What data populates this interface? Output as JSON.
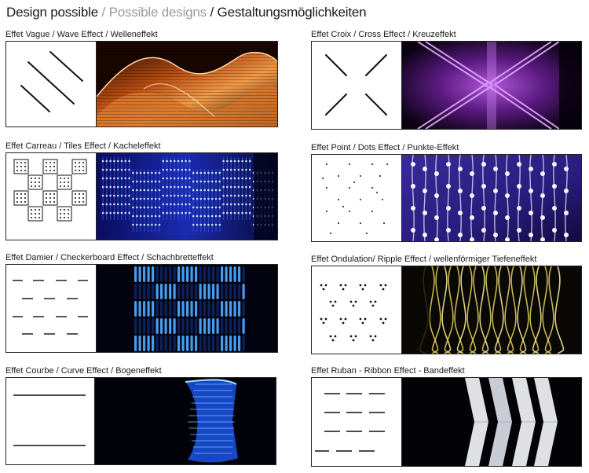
{
  "title": {
    "part1": "Design possible",
    "sep1": " / ",
    "part2": "Possible designs",
    "sep2": " / ",
    "part3": "Gestaltungsmöglichkeiten"
  },
  "effects": [
    {
      "label": "Effet Vague / Wave Effect / Welleneffekt"
    },
    {
      "label": "Effet Croix / Cross Effect / Kreuzeffekt"
    },
    {
      "label": "Effet Carreau / Tiles Effect / Kacheleffekt"
    },
    {
      "label": "Effet Point / Dots Effect / Punkte-Effekt"
    },
    {
      "label": "Effet Damier / Checkerboard Effect / Schachbretteffekt"
    },
    {
      "label": "Effet Ondulation/ Ripple Effect / wellenförmiger Tiefeneffekt"
    },
    {
      "label": "Effet Courbe / Curve Effect / Bogeneffekt"
    },
    {
      "label": "Effet Ruban - Ribbon Effect - Bandeffekt"
    }
  ]
}
